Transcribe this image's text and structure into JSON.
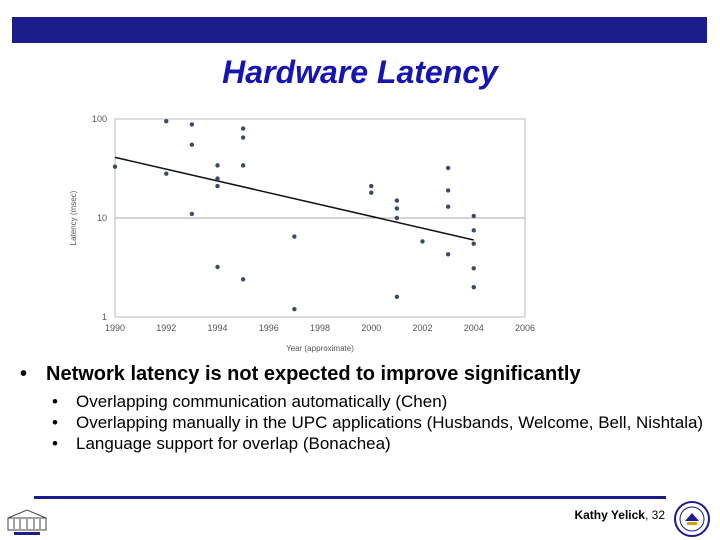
{
  "slide": {
    "title": "Hardware Latency",
    "main_bullet": "Network latency is not expected to improve significantly",
    "sub_bullets": [
      "Overlapping communication automatically (Chen)",
      "Overlapping manually in the UPC applications (Husbands, Welcome, Bell, Nishtala)",
      "Language support for overlap (Bonachea)"
    ],
    "footer_author": "Kathy Yelick",
    "footer_page": "32",
    "bullet_glyph": "•",
    "colors": {
      "accent": "#1c1c8c",
      "title": "#1515b4",
      "points": "#3a4a6a",
      "trend": "#111111"
    }
  },
  "chart_data": {
    "type": "scatter",
    "title": "",
    "xlabel": "Year (approximate)",
    "ylabel": "Latency (msec)",
    "y_scale": "log",
    "xlim": [
      1990,
      2006
    ],
    "ylim": [
      1,
      100
    ],
    "x_ticks": [
      1990,
      1992,
      1994,
      1996,
      1998,
      2000,
      2002,
      2004,
      2006
    ],
    "x_tick_labels": [
      "1990",
      "1992",
      "1994",
      "1996",
      "1998",
      "2000",
      "2002",
      "2004",
      "2006"
    ],
    "y_ticks": [
      1,
      10,
      100
    ],
    "y_tick_labels": [
      "1",
      "10",
      "100"
    ],
    "grid": "horizontal",
    "series": [
      {
        "points": [
          [
            1990,
            33
          ],
          [
            1992,
            95
          ],
          [
            1992,
            28
          ],
          [
            1993,
            88
          ],
          [
            1993,
            55
          ],
          [
            1993,
            11
          ],
          [
            1994,
            34
          ],
          [
            1994,
            25
          ],
          [
            1994,
            21
          ],
          [
            1994,
            3.2
          ],
          [
            1995,
            80
          ],
          [
            1995,
            65
          ],
          [
            1995,
            34
          ],
          [
            1995,
            2.4
          ],
          [
            1997,
            6.5
          ],
          [
            1997,
            1.2
          ],
          [
            2000,
            21
          ],
          [
            2000,
            18
          ],
          [
            2001,
            15
          ],
          [
            2001,
            12.5
          ],
          [
            2001,
            10
          ],
          [
            2001,
            1.6
          ],
          [
            2002,
            5.8
          ],
          [
            2003,
            32
          ],
          [
            2003,
            19
          ],
          [
            2003,
            13
          ],
          [
            2003,
            4.3
          ],
          [
            2004,
            10.5
          ],
          [
            2004,
            7.5
          ],
          [
            2004,
            5.5
          ],
          [
            2004,
            3.1
          ],
          [
            2004,
            2
          ]
        ]
      }
    ],
    "trend_line": {
      "x": [
        1990,
        2004
      ],
      "y": [
        41,
        6
      ]
    }
  }
}
